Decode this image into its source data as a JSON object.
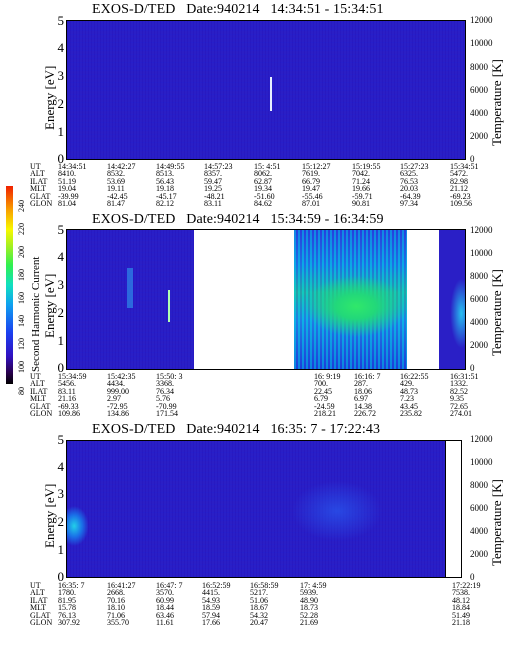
{
  "chart_data": [
    {
      "type": "heatmap",
      "title": "EXOS-D/TED   Date:940214   14:34:51 - 15:34:51",
      "ylabel": "Energy [eV]",
      "y2label": "Temperature [K]",
      "ylim": [
        0,
        5
      ],
      "y2lim": [
        0,
        12000
      ],
      "yticks": [
        "0",
        "1",
        "2",
        "3",
        "4",
        "5"
      ],
      "y2ticks": [
        "0",
        "2000",
        "4000",
        "6000",
        "8000",
        "10000",
        "12000"
      ],
      "orbit_table": {
        "row_labels": [
          "UT",
          "ALT",
          "ILAT",
          "MLT",
          "GLAT",
          "GLON"
        ],
        "columns": [
          [
            "14:34:51",
            "8410.",
            "51.19",
            "19.04",
            "-39.99",
            "81.04"
          ],
          [
            "14:42:27",
            "8532.",
            "53.69",
            "19.11",
            "-42.45",
            "81.47"
          ],
          [
            "14:49:55",
            "8513.",
            "56.43",
            "19.18",
            "-45.17",
            "82.12"
          ],
          [
            "14:57:23",
            "8357.",
            "59.47",
            "19.25",
            "-48.21",
            "83.11"
          ],
          [
            "15: 4:51",
            "8062.",
            "62.87",
            "19.34",
            "-51.60",
            "84.62"
          ],
          [
            "15:12:27",
            "7619.",
            "66.79",
            "19.47",
            "-55.46",
            "87.01"
          ],
          [
            "15:19:55",
            "7042.",
            "71.24",
            "19.66",
            "-59.71",
            "90.81"
          ],
          [
            "15:27:23",
            "6325.",
            "76.53",
            "20.03",
            "-64.39",
            "97.34"
          ],
          [
            "15:34:51",
            "5472.",
            "82.98",
            "21.12",
            "-69.23",
            "109.56"
          ]
        ]
      }
    },
    {
      "type": "heatmap",
      "title": "EXOS-D/TED   Date:940214   15:34:59 - 16:34:59",
      "ylabel": "Energy [eV]",
      "y2label": "Temperature [K]",
      "ylim": [
        0,
        5
      ],
      "y2lim": [
        0,
        12000
      ],
      "yticks": [
        "0",
        "1",
        "2",
        "3",
        "4",
        "5"
      ],
      "y2ticks": [
        "0",
        "2000",
        "4000",
        "6000",
        "8000",
        "10000",
        "12000"
      ],
      "colorbar": {
        "label": "Second Harmonic Current",
        "ticks": [
          "80",
          "100",
          "120",
          "140",
          "160",
          "180",
          "200",
          "220",
          "240"
        ]
      },
      "orbit_table": {
        "row_labels": [
          "UT",
          "ALT",
          "ILAT",
          "MLT",
          "GLAT",
          "GLON"
        ],
        "columns": [
          [
            "15:34:59",
            "5456.",
            "83.11",
            "21.16",
            "-69.33",
            "109.86"
          ],
          [
            "15:42:35",
            "4434.",
            "999.00",
            "2.97",
            "-72.95",
            "134.86"
          ],
          [
            "15:50: 3",
            "3368.",
            "76.34",
            "5.76",
            "-70.99",
            "171.54"
          ],
          [
            "16: 9:19",
            "700.",
            "22.45",
            "6.79",
            "-24.59",
            "218.21"
          ],
          [
            "16:16: 7",
            "287.",
            "18.06",
            "6.97",
            "14.38",
            "226.72"
          ],
          [
            "16:22:55",
            "429.",
            "48.73",
            "7.23",
            "43.45",
            "235.82"
          ],
          [
            "16:31:51",
            "1332.",
            "82.52",
            "9.35",
            "72.65",
            "274.01"
          ]
        ]
      }
    },
    {
      "type": "heatmap",
      "title": "EXOS-D/TED   Date:940214   16:35: 7 - 17:22:43",
      "ylabel": "Energy [eV]",
      "y2label": "Temperature [K]",
      "ylim": [
        0,
        5
      ],
      "y2lim": [
        0,
        12000
      ],
      "yticks": [
        "0",
        "1",
        "2",
        "3",
        "4",
        "5"
      ],
      "y2ticks": [
        "0",
        "2000",
        "4000",
        "6000",
        "8000",
        "10000",
        "12000"
      ],
      "orbit_table": {
        "row_labels": [
          "UT",
          "ALT",
          "ILAT",
          "MLT",
          "GLAT",
          "GLON"
        ],
        "columns": [
          [
            "16:35: 7",
            "1780.",
            "81.95",
            "15.78",
            "76.13",
            "307.92"
          ],
          [
            "16:41:27",
            "2668.",
            "70.16",
            "18.10",
            "71.06",
            "355.70"
          ],
          [
            "16:47: 7",
            "3570.",
            "60.99",
            "18.44",
            "63.46",
            "11.61"
          ],
          [
            "16:52:59",
            "4415.",
            "54.93",
            "18.59",
            "57.94",
            "17.66"
          ],
          [
            "16:58:59",
            "5217.",
            "51.06",
            "18.67",
            "54.32",
            "20.47"
          ],
          [
            "17: 4:59",
            "5939.",
            "48.90",
            "18.73",
            "52.28",
            "21.69"
          ],
          [
            "17:22:19",
            "7538.",
            "48.12",
            "18.84",
            "51.49",
            "21.18"
          ]
        ]
      }
    }
  ]
}
